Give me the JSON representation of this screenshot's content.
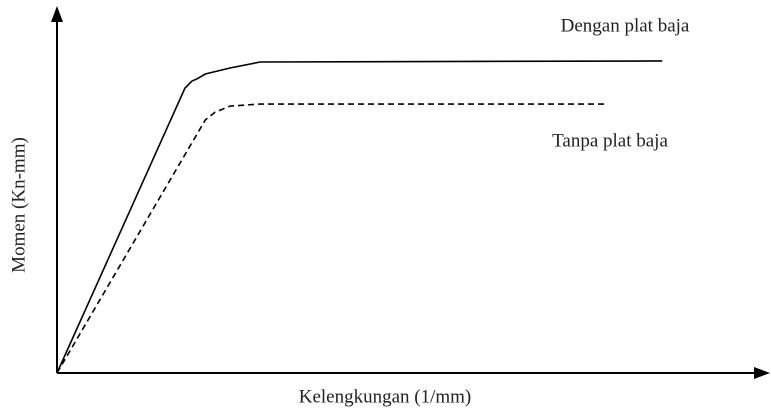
{
  "chart_data": {
    "type": "line",
    "xlabel": "Kelengkungan (1/mm)",
    "ylabel": "Momen (Kn-mm)",
    "xlim": [
      0,
      100
    ],
    "ylim": [
      0,
      100
    ],
    "series": [
      {
        "name": "Dengan plat baja",
        "color": "#000000",
        "dash": false,
        "x": [
          0,
          18.2,
          19.2,
          19.9,
          21.1,
          24.6,
          28.9,
          86.1
        ],
        "values": [
          0,
          80.7,
          82.7,
          83.3,
          84.7,
          86.4,
          88.1,
          88.4
        ]
      },
      {
        "name": "Tanpa plat baja",
        "color": "#000000",
        "dash": true,
        "x": [
          0,
          21.1,
          22.5,
          24.6,
          28.9,
          78.0
        ],
        "values": [
          0,
          71.7,
          73.9,
          75.6,
          76.2,
          76.2
        ]
      }
    ]
  }
}
